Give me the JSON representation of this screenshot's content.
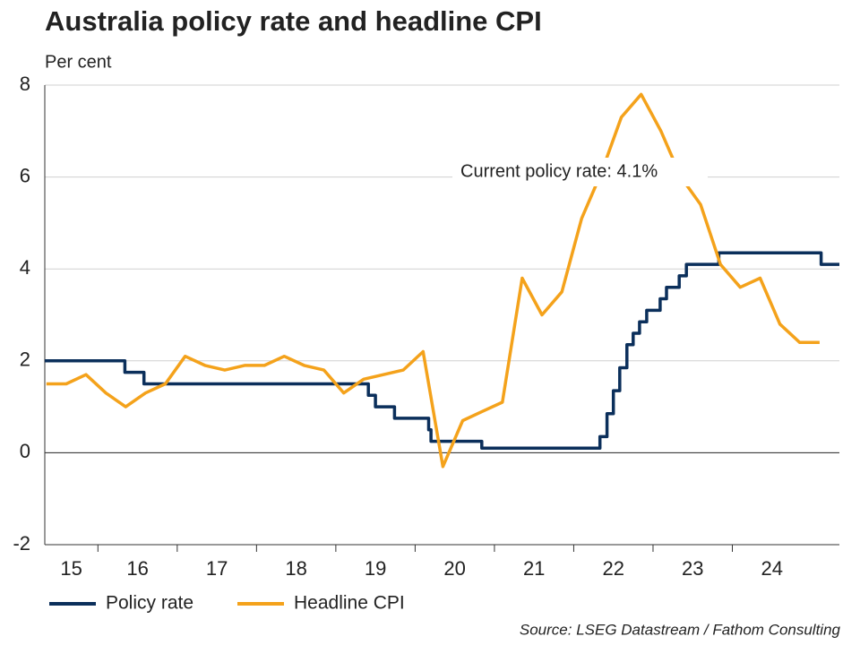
{
  "chart_data": {
    "type": "line",
    "title": "Australia policy rate and headline CPI",
    "subtitle": "Per cent",
    "source": "Source: LSEG Datastream / Fathom Consulting",
    "annotation": "Current policy rate: 4.1%",
    "xlim": [
      2015.33,
      2025.35
    ],
    "xticks": [
      {
        "value": 2015,
        "label": "15"
      },
      {
        "value": 2016,
        "label": "16"
      },
      {
        "value": 2017,
        "label": "17"
      },
      {
        "value": 2018,
        "label": "18"
      },
      {
        "value": 2019,
        "label": "19"
      },
      {
        "value": 2020,
        "label": "20"
      },
      {
        "value": 2021,
        "label": "21"
      },
      {
        "value": 2022,
        "label": "22"
      },
      {
        "value": 2023,
        "label": "23"
      },
      {
        "value": 2024,
        "label": "24"
      }
    ],
    "ylim": [
      -2,
      8
    ],
    "yticks": [
      -2,
      0,
      2,
      4,
      6,
      8
    ],
    "grid": true,
    "series": [
      {
        "name": "Policy rate",
        "color": "#0b2f5b",
        "x": [
          2015.33,
          2016.34,
          2016.34,
          2016.58,
          2016.58,
          2019.41,
          2019.41,
          2019.5,
          2019.5,
          2019.74,
          2019.74,
          2020.17,
          2020.17,
          2020.2,
          2020.2,
          2020.84,
          2020.84,
          2022.33,
          2022.33,
          2022.42,
          2022.42,
          2022.5,
          2022.5,
          2022.58,
          2022.58,
          2022.67,
          2022.67,
          2022.75,
          2022.75,
          2022.83,
          2022.83,
          2022.92,
          2022.92,
          2023.09,
          2023.09,
          2023.17,
          2023.17,
          2023.33,
          2023.33,
          2023.42,
          2023.42,
          2023.83,
          2023.83,
          2025.12,
          2025.12,
          2025.35
        ],
        "values": [
          2.0,
          2.0,
          1.75,
          1.75,
          1.5,
          1.5,
          1.25,
          1.25,
          1.0,
          1.0,
          0.75,
          0.75,
          0.5,
          0.5,
          0.25,
          0.25,
          0.1,
          0.1,
          0.35,
          0.35,
          0.85,
          0.85,
          1.35,
          1.35,
          1.85,
          1.85,
          2.35,
          2.35,
          2.6,
          2.6,
          2.85,
          2.85,
          3.1,
          3.1,
          3.35,
          3.35,
          3.6,
          3.6,
          3.85,
          3.85,
          4.1,
          4.1,
          4.35,
          4.35,
          4.1,
          4.1
        ]
      },
      {
        "name": "Headline CPI",
        "color": "#f4a21b",
        "x": [
          2015.35,
          2015.6,
          2015.85,
          2016.1,
          2016.35,
          2016.6,
          2016.85,
          2017.1,
          2017.35,
          2017.6,
          2017.85,
          2018.1,
          2018.35,
          2018.6,
          2018.85,
          2019.1,
          2019.35,
          2019.6,
          2019.85,
          2020.1,
          2020.35,
          2020.6,
          2020.85,
          2021.1,
          2021.35,
          2021.6,
          2021.85,
          2022.1,
          2022.35,
          2022.6,
          2022.85,
          2023.1,
          2023.35,
          2023.6,
          2023.85,
          2024.1,
          2024.35,
          2024.6,
          2024.85,
          2025.1
        ],
        "values": [
          1.5,
          1.5,
          1.7,
          1.3,
          1.0,
          1.3,
          1.5,
          2.1,
          1.9,
          1.8,
          1.9,
          1.9,
          2.1,
          1.9,
          1.8,
          1.3,
          1.6,
          1.7,
          1.8,
          2.2,
          -0.3,
          0.7,
          0.9,
          1.1,
          3.8,
          3.0,
          3.5,
          5.1,
          6.1,
          7.3,
          7.8,
          7.0,
          6.0,
          5.4,
          4.1,
          3.6,
          3.8,
          2.8,
          2.4,
          2.4
        ]
      }
    ]
  }
}
